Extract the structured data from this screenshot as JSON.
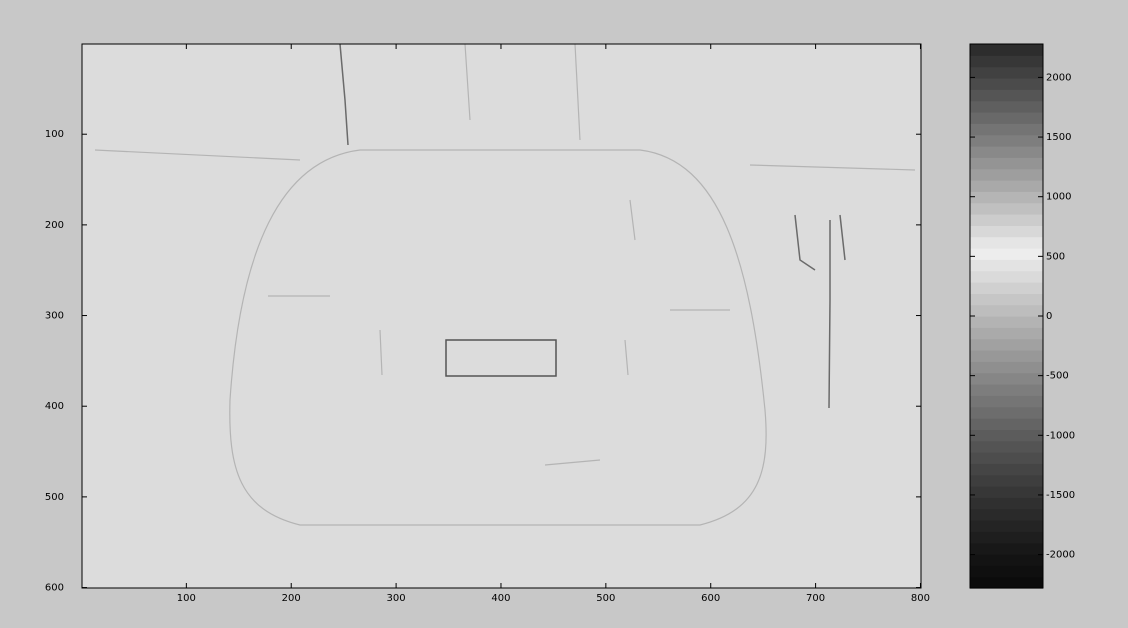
{
  "chart_data": {
    "type": "image",
    "xlim": [
      0.5,
      800.5
    ],
    "ylim": [
      0.5,
      600.5
    ],
    "y_reversed": true,
    "xticks": [
      100,
      200,
      300,
      400,
      500,
      600,
      700,
      800
    ],
    "yticks": [
      100,
      200,
      300,
      400,
      500,
      600
    ],
    "colorbar": {
      "clim": [
        -2280,
        2280
      ],
      "ticks": [
        -2000,
        -1500,
        -1000,
        -500,
        0,
        500,
        1000,
        1500,
        2000
      ]
    }
  }
}
